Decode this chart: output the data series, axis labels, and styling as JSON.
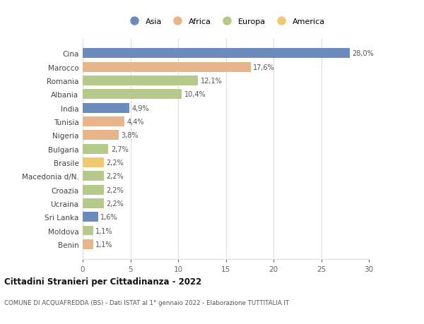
{
  "countries": [
    "Cina",
    "Marocco",
    "Romania",
    "Albania",
    "India",
    "Tunisia",
    "Nigeria",
    "Bulgaria",
    "Brasile",
    "Macedonia d/N.",
    "Croazia",
    "Ucraina",
    "Sri Lanka",
    "Moldova",
    "Benin"
  ],
  "values": [
    28.0,
    17.6,
    12.1,
    10.4,
    4.9,
    4.4,
    3.8,
    2.7,
    2.2,
    2.2,
    2.2,
    2.2,
    1.6,
    1.1,
    1.1
  ],
  "labels": [
    "28,0%",
    "17,6%",
    "12,1%",
    "10,4%",
    "4,9%",
    "4,4%",
    "3,8%",
    "2,7%",
    "2,2%",
    "2,2%",
    "2,2%",
    "2,2%",
    "1,6%",
    "1,1%",
    "1,1%"
  ],
  "continents": [
    "Asia",
    "Africa",
    "Europa",
    "Europa",
    "Asia",
    "Africa",
    "Africa",
    "Europa",
    "America",
    "Europa",
    "Europa",
    "Europa",
    "Asia",
    "Europa",
    "Africa"
  ],
  "colors": {
    "Asia": "#6b8cba",
    "Africa": "#e8b48a",
    "Europa": "#b5c98a",
    "America": "#f0c96e"
  },
  "legend_order": [
    "Asia",
    "Africa",
    "Europa",
    "America"
  ],
  "title": "Cittadini Stranieri per Cittadinanza - 2022",
  "subtitle": "COMUNE DI ACQUAFREDDA (BS) - Dati ISTAT al 1° gennaio 2022 - Elaborazione TUTTITALIA.IT",
  "xlim": [
    0,
    30
  ],
  "xticks": [
    0,
    5,
    10,
    15,
    20,
    25,
    30
  ],
  "background_color": "#ffffff",
  "grid_color": "#dddddd",
  "bar_height": 0.72
}
